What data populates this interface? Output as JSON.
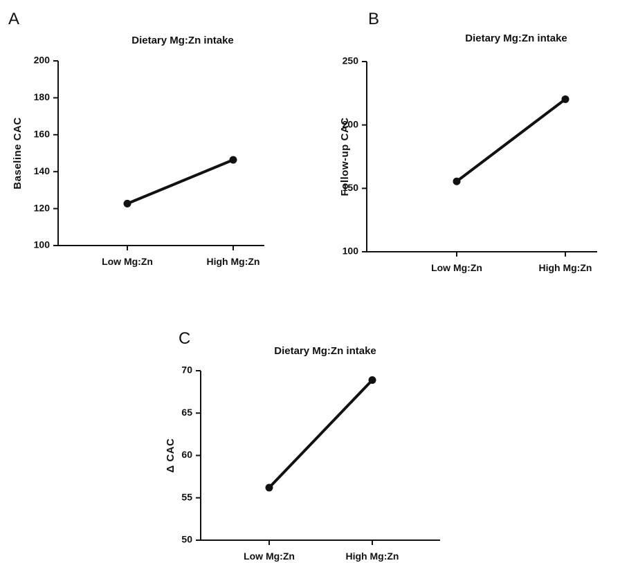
{
  "chart_data": [
    {
      "panel": "A",
      "type": "line",
      "title": "Dietary Mg:Zn intake",
      "xlabel": "",
      "ylabel": "Baseline CAC",
      "categories": [
        "Low Mg:Zn",
        "High Mg:Zn"
      ],
      "values": [
        122.7,
        146.4
      ],
      "ylim": [
        100,
        200
      ],
      "yticks": [
        100,
        120,
        140,
        160,
        180,
        200
      ],
      "grid": false
    },
    {
      "panel": "B",
      "type": "line",
      "title": "Dietary Mg:Zn intake",
      "xlabel": "",
      "ylabel": "Follow-up CAC",
      "categories": [
        "Low Mg:Zn",
        "High Mg:Zn"
      ],
      "values": [
        155.5,
        220.3
      ],
      "ylim": [
        100,
        250
      ],
      "yticks": [
        100,
        150,
        200,
        250
      ],
      "grid": false
    },
    {
      "panel": "C",
      "type": "line",
      "title": "Dietary Mg:Zn intake",
      "xlabel": "",
      "ylabel": "Δ CAC",
      "categories": [
        "Low Mg:Zn",
        "High Mg:Zn"
      ],
      "values": [
        56.2,
        68.9
      ],
      "ylim": [
        50,
        70
      ],
      "yticks": [
        50,
        55,
        60,
        65,
        70
      ],
      "grid": false
    }
  ]
}
